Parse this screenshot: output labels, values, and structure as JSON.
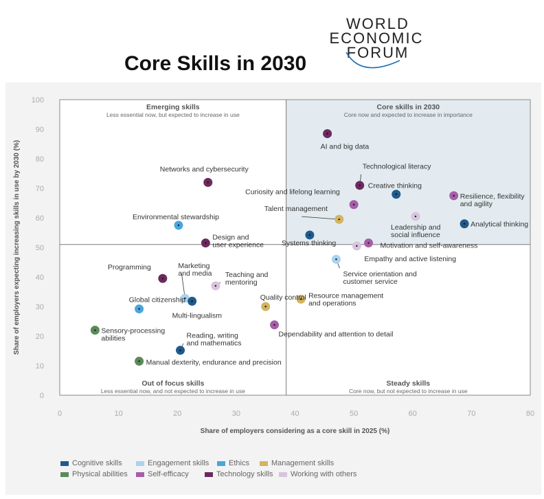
{
  "page": {
    "title": "Core Skills in 2030"
  },
  "logo": {
    "line1": "WORLD",
    "line2": "ECONOMIC",
    "line3": "FORUM"
  },
  "chart_data": {
    "type": "scatter",
    "title": "",
    "xlabel": "Share of employers considering as a core skill in 2025 (%)",
    "ylabel": "Share of employers expecting increasing skills in use by 2030 (%)",
    "xlim": [
      0,
      80
    ],
    "ylim": [
      0,
      100
    ],
    "x_ticks": [
      0,
      10,
      20,
      30,
      40,
      50,
      60,
      70,
      80
    ],
    "y_ticks": [
      0,
      10,
      20,
      30,
      40,
      50,
      60,
      70,
      80,
      90,
      100
    ],
    "divider_x": 38.5,
    "divider_y": 51,
    "grid": false,
    "legend_position": "bottom",
    "quadrants": [
      {
        "title": "Emerging skills",
        "subtitle": "Less essential now, but expected to increase in use"
      },
      {
        "title": "Core skills in 2030",
        "subtitle": "Core now and expected to increase in importance"
      },
      {
        "title": "Out of focus skills",
        "subtitle": "Less essential now, and not expected to increase in use"
      },
      {
        "title": "Steady skills",
        "subtitle": "Core now, but not expected to increase in use"
      }
    ],
    "categories": [
      {
        "name": "Cognitive skills",
        "color": "#1f5a8c"
      },
      {
        "name": "Engagement skills",
        "color": "#a9d3ef"
      },
      {
        "name": "Ethics",
        "color": "#4aa6dc"
      },
      {
        "name": "Management skills",
        "color": "#d2b461"
      },
      {
        "name": "Physical abilities",
        "color": "#5c8a5a"
      },
      {
        "name": "Self-efficacy",
        "color": "#a65ea8"
      },
      {
        "name": "Technology skills",
        "color": "#6b2a5e"
      },
      {
        "name": "Working with others",
        "color": "#d9c4de"
      }
    ],
    "points": [
      {
        "label": "AI and big data",
        "x": 45.5,
        "y": 88.5,
        "cat": 6
      },
      {
        "label": "Networks and cybersecurity",
        "x": 25.2,
        "y": 72,
        "cat": 6
      },
      {
        "label": "Technological literacy",
        "x": 51,
        "y": 71,
        "cat": 6
      },
      {
        "label": "Creative thinking",
        "x": 57.2,
        "y": 68,
        "cat": 0
      },
      {
        "label": "Resilience, flexibility\nand agility",
        "x": 67,
        "y": 67.5,
        "cat": 5
      },
      {
        "label": "Curiosity and lifelong learning",
        "x": 50,
        "y": 64.5,
        "cat": 5
      },
      {
        "label": "Leadership and\nsocial influence",
        "x": 60.5,
        "y": 60.5,
        "cat": 7
      },
      {
        "label": "Talent management",
        "x": 47.5,
        "y": 59.5,
        "cat": 3
      },
      {
        "label": "Analytical thinking",
        "x": 68.8,
        "y": 58,
        "cat": 0
      },
      {
        "label": "Environmental stewardship",
        "x": 20.2,
        "y": 57.5,
        "cat": 2
      },
      {
        "label": "Systems thinking",
        "x": 42.5,
        "y": 54.2,
        "cat": 0
      },
      {
        "label": "Design and\nuser experience",
        "x": 24.8,
        "y": 51.5,
        "cat": 6
      },
      {
        "label": "Motivation and self-awareness",
        "x": 52.5,
        "y": 51.5,
        "cat": 5
      },
      {
        "label": "Empathy and active listening",
        "x": 50.5,
        "y": 50.5,
        "cat": 7
      },
      {
        "label": "Service orientation and\ncustomer service",
        "x": 47,
        "y": 46,
        "cat": 1
      },
      {
        "label": "Programming",
        "x": 17.5,
        "y": 39.5,
        "cat": 6
      },
      {
        "label": "Teaching and\nmentoring",
        "x": 26.5,
        "y": 37,
        "cat": 7
      },
      {
        "label": "Marketing\nand media",
        "x": 21.3,
        "y": 32.8,
        "cat": 1
      },
      {
        "label": "Resource management\nand operations",
        "x": 41,
        "y": 32.5,
        "cat": 3
      },
      {
        "label": "Multi-lingualism",
        "x": 22.5,
        "y": 31.8,
        "cat": 0
      },
      {
        "label": "Quality control",
        "x": 35,
        "y": 30,
        "cat": 3
      },
      {
        "label": "Global citizenship",
        "x": 13.5,
        "y": 29.2,
        "cat": 2
      },
      {
        "label": "Dependability and attention to detail",
        "x": 36.5,
        "y": 23.8,
        "cat": 5
      },
      {
        "label": "Sensory-processing\nabilities",
        "x": 6,
        "y": 22,
        "cat": 4
      },
      {
        "label": "Reading, writing\nand mathematics",
        "x": 20.5,
        "y": 15.2,
        "cat": 0
      },
      {
        "label": "Manual dexterity, endurance and precision",
        "x": 13.5,
        "y": 11.5,
        "cat": 4
      }
    ]
  }
}
